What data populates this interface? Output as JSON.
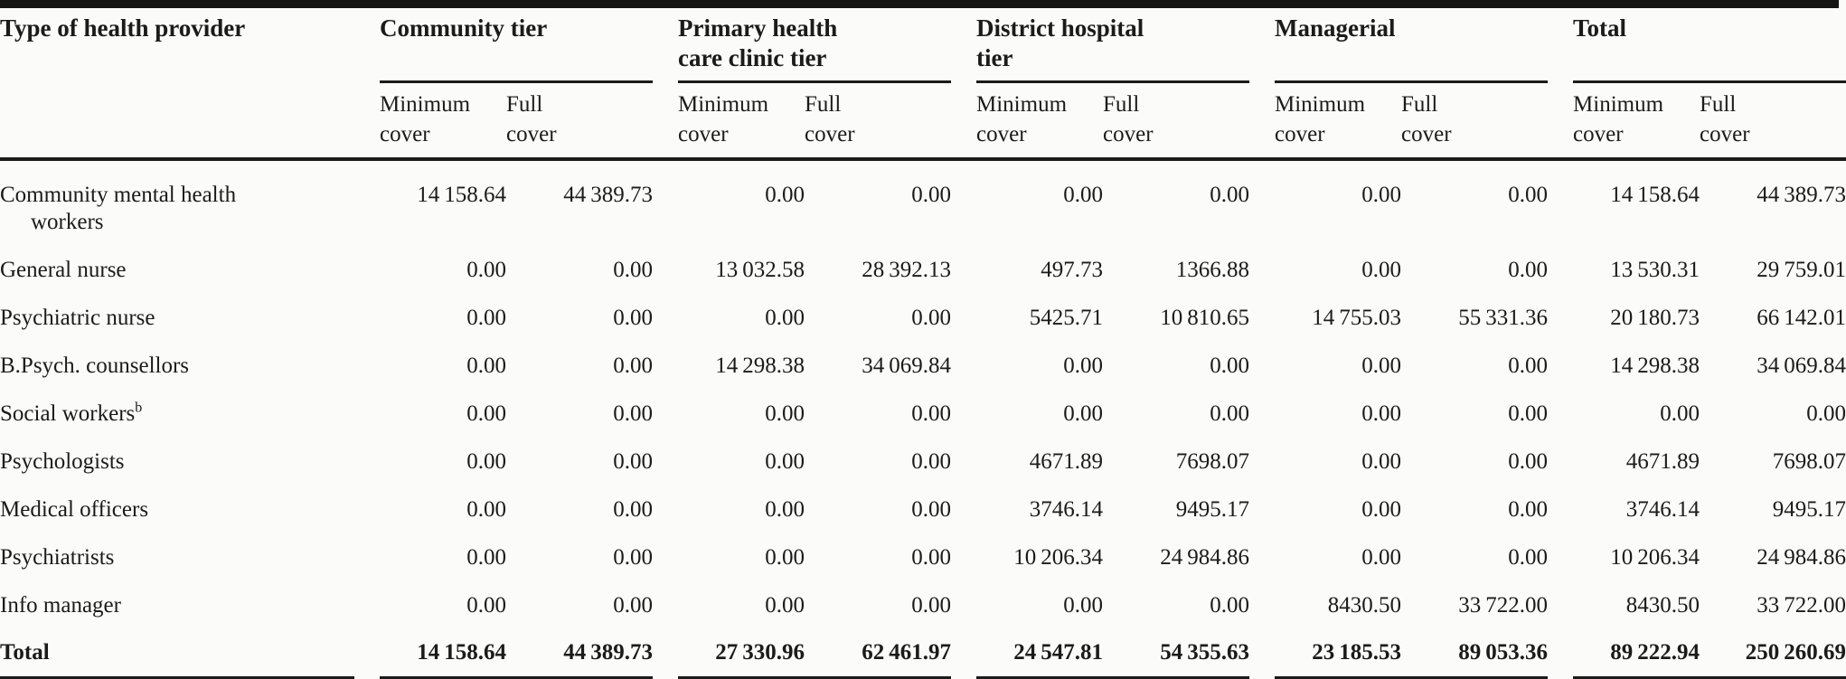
{
  "table": {
    "title_column_header": "Type of health provider",
    "groups": [
      {
        "title": "Community tier"
      },
      {
        "title": "Primary health care clinic tier"
      },
      {
        "title": "District hospital tier"
      },
      {
        "title": "Managerial"
      },
      {
        "title": "Total"
      }
    ],
    "col_headers": [
      "Minimum cover",
      "Full cover"
    ],
    "rows": [
      {
        "label": "Community mental health workers",
        "values": [
          "14 158.64",
          "44 389.73",
          "0.00",
          "0.00",
          "0.00",
          "0.00",
          "0.00",
          "0.00",
          "14 158.64",
          "44 389.73"
        ]
      },
      {
        "label": "General nurse",
        "values": [
          "0.00",
          "0.00",
          "13 032.58",
          "28 392.13",
          "497.73",
          "1366.88",
          "0.00",
          "0.00",
          "13 530.31",
          "29 759.01"
        ]
      },
      {
        "label": "Psychiatric nurse",
        "values": [
          "0.00",
          "0.00",
          "0.00",
          "0.00",
          "5425.71",
          "10 810.65",
          "14 755.03",
          "55 331.36",
          "20 180.73",
          "66 142.01"
        ]
      },
      {
        "label": "B.Psych. counsellors",
        "values": [
          "0.00",
          "0.00",
          "14 298.38",
          "34 069.84",
          "0.00",
          "0.00",
          "0.00",
          "0.00",
          "14 298.38",
          "34 069.84"
        ]
      },
      {
        "label": "Social workers",
        "label_sup": "b",
        "values": [
          "0.00",
          "0.00",
          "0.00",
          "0.00",
          "0.00",
          "0.00",
          "0.00",
          "0.00",
          "0.00",
          "0.00"
        ]
      },
      {
        "label": "Psychologists",
        "values": [
          "0.00",
          "0.00",
          "0.00",
          "0.00",
          "4671.89",
          "7698.07",
          "0.00",
          "0.00",
          "4671.89",
          "7698.07"
        ]
      },
      {
        "label": "Medical officers",
        "values": [
          "0.00",
          "0.00",
          "0.00",
          "0.00",
          "3746.14",
          "9495.17",
          "0.00",
          "0.00",
          "3746.14",
          "9495.17"
        ]
      },
      {
        "label": "Psychiatrists",
        "values": [
          "0.00",
          "0.00",
          "0.00",
          "0.00",
          "10 206.34",
          "24 984.86",
          "0.00",
          "0.00",
          "10 206.34",
          "24 984.86"
        ]
      },
      {
        "label": "Info manager",
        "values": [
          "0.00",
          "0.00",
          "0.00",
          "0.00",
          "0.00",
          "0.00",
          "8430.50",
          "33 722.00",
          "8430.50",
          "33 722.00"
        ]
      },
      {
        "label": "Total",
        "bold": true,
        "values": [
          "14 158.64",
          "44 389.73",
          "27 330.96",
          "62 461.97",
          "24 547.81",
          "54 355.63",
          "23 185.53",
          "89 053.36",
          "89 222.94",
          "250 260.69"
        ]
      }
    ]
  },
  "colors": {
    "text": "#1b1b1b",
    "rule": "#161616",
    "background": "#fbfbf9"
  }
}
